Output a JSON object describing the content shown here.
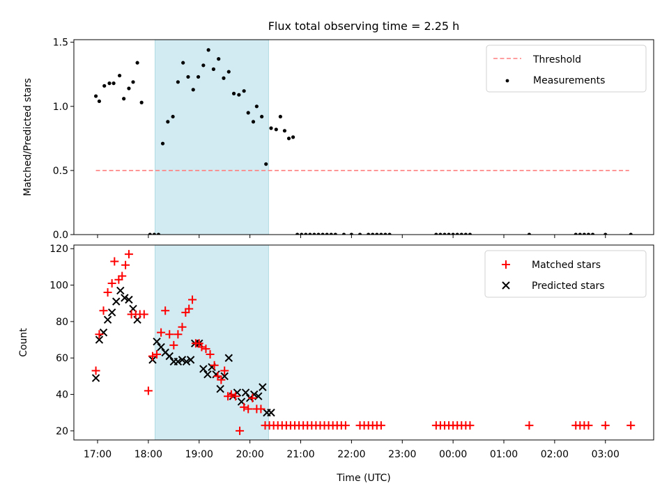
{
  "title": "Flux total observing time = 2.25 h",
  "colors": {
    "threshold": "#ff7f7f",
    "measurement": "#000000",
    "matched": "#ff0000",
    "predicted": "#000000",
    "observing_span": "#add8e6"
  },
  "chart_data": [
    {
      "type": "scatter",
      "ylabel": "Matched/Predicted stars",
      "ylim": [
        0,
        1.52
      ],
      "yticks": [
        0.0,
        0.5,
        1.0,
        1.5
      ],
      "ytick_labels": [
        "0.0",
        "0.5",
        "1.0",
        "1.5"
      ],
      "shaded_span": [
        "18:08",
        "20:22"
      ],
      "legend_position": "top-right",
      "legend": [
        "Threshold",
        "Measurements"
      ],
      "threshold": {
        "name": "Threshold",
        "value": 0.5,
        "x_range": [
          "16:58",
          "03:28"
        ]
      },
      "series": [
        {
          "name": "Measurements",
          "x": [
            "16:58",
            "17:02",
            "17:08",
            "17:14",
            "17:19",
            "17:26",
            "17:31",
            "17:37",
            "17:42",
            "17:47",
            "17:52",
            "18:02",
            "18:07",
            "18:12",
            "18:17",
            "18:23",
            "18:29",
            "18:35",
            "18:41",
            "18:47",
            "18:53",
            "18:59",
            "19:05",
            "19:11",
            "19:17",
            "19:23",
            "19:29",
            "19:35",
            "19:41",
            "19:47",
            "19:53",
            "19:58",
            "20:04",
            "20:08",
            "20:14",
            "20:19",
            "20:25",
            "20:31",
            "20:36",
            "20:41",
            "20:46",
            "20:51",
            "20:56",
            "21:01",
            "21:06",
            "21:11",
            "21:16",
            "21:21",
            "21:26",
            "21:31",
            "21:36",
            "21:41",
            "21:51",
            "22:00",
            "22:10",
            "22:20",
            "22:25",
            "22:30",
            "22:35",
            "22:40",
            "22:45",
            "23:40",
            "23:45",
            "23:50",
            "23:55",
            "00:00",
            "00:05",
            "00:10",
            "00:15",
            "00:20",
            "01:30",
            "02:25",
            "02:30",
            "02:35",
            "02:40",
            "02:45",
            "03:00",
            "03:30"
          ],
          "y": [
            1.08,
            1.04,
            1.16,
            1.18,
            1.18,
            1.24,
            1.06,
            1.14,
            1.19,
            1.34,
            1.03,
            0,
            0,
            0,
            0.71,
            0.88,
            0.92,
            1.19,
            1.34,
            1.23,
            1.13,
            1.23,
            1.32,
            1.44,
            1.29,
            1.37,
            1.22,
            1.27,
            1.1,
            1.09,
            1.12,
            0.95,
            0.88,
            1.0,
            0.92,
            0.55,
            0.83,
            0.82,
            0.92,
            0.81,
            0.75,
            0.76,
            0,
            0,
            0,
            0,
            0,
            0,
            0,
            0,
            0,
            0,
            0,
            0,
            0,
            0,
            0,
            0,
            0,
            0,
            0,
            0,
            0,
            0,
            0,
            0,
            0,
            0,
            0,
            0,
            0,
            0,
            0,
            0,
            0,
            0,
            0,
            0
          ]
        }
      ]
    },
    {
      "type": "scatter",
      "xlabel": "Time (UTC)",
      "ylabel": "Count",
      "ylim": [
        15,
        122
      ],
      "yticks": [
        20,
        40,
        60,
        80,
        100,
        120
      ],
      "ytick_labels": [
        "20",
        "40",
        "60",
        "80",
        "100",
        "120"
      ],
      "xticks": [
        "17:00",
        "18:00",
        "19:00",
        "20:00",
        "21:00",
        "22:00",
        "23:00",
        "00:00",
        "01:00",
        "02:00",
        "03:00"
      ],
      "xlim": [
        "16:32",
        "03:57"
      ],
      "shaded_span": [
        "18:08",
        "20:22"
      ],
      "legend_position": "top-right",
      "legend": [
        "Matched stars",
        "Predicted stars"
      ],
      "series": [
        {
          "name": "Matched stars",
          "x": [
            "16:58",
            "17:02",
            "17:07",
            "17:12",
            "17:17",
            "17:20",
            "17:25",
            "17:29",
            "17:33",
            "17:37",
            "17:40",
            "17:45",
            "17:50",
            "17:55",
            "18:00",
            "18:05",
            "18:10",
            "18:15",
            "18:20",
            "18:25",
            "18:30",
            "18:35",
            "18:40",
            "18:44",
            "18:48",
            "18:52",
            "18:56",
            "19:00",
            "19:03",
            "19:08",
            "19:13",
            "19:18",
            "19:22",
            "19:26",
            "19:30",
            "19:34",
            "19:38",
            "19:43",
            "19:48",
            "19:53",
            "19:58",
            "20:03",
            "20:08",
            "20:13",
            "20:18",
            "20:23",
            "20:28",
            "20:33",
            "20:38",
            "20:43",
            "20:48",
            "20:53",
            "20:58",
            "21:03",
            "21:08",
            "21:13",
            "21:18",
            "21:23",
            "21:28",
            "21:33",
            "21:38",
            "21:43",
            "21:48",
            "21:53",
            "22:10",
            "22:15",
            "22:20",
            "22:25",
            "22:30",
            "22:35",
            "23:40",
            "23:45",
            "23:50",
            "23:55",
            "00:00",
            "00:05",
            "00:10",
            "00:15",
            "00:20",
            "01:30",
            "02:25",
            "02:30",
            "02:35",
            "02:40",
            "03:00",
            "03:30"
          ],
          "y": [
            53,
            73,
            86,
            96,
            101,
            113,
            103,
            105,
            111,
            117,
            84,
            84,
            84,
            84,
            42,
            61,
            62,
            74,
            86,
            73,
            67,
            73,
            77,
            85,
            87,
            92,
            68,
            68,
            66,
            65,
            62,
            56,
            50,
            48,
            53,
            39,
            40,
            39,
            20,
            33,
            32,
            38,
            32,
            32,
            23,
            23,
            23,
            23,
            23,
            23,
            23,
            23,
            23,
            23,
            23,
            23,
            23,
            23,
            23,
            23,
            23,
            23,
            23,
            23,
            23,
            23,
            23,
            23,
            23,
            23,
            23,
            23,
            23,
            23,
            23,
            23,
            23,
            23,
            23,
            23,
            23,
            23,
            23,
            23,
            23,
            23
          ]
        },
        {
          "name": "Predicted stars",
          "x": [
            "16:58",
            "17:02",
            "17:07",
            "17:12",
            "17:17",
            "17:22",
            "17:27",
            "17:32",
            "17:37",
            "17:42",
            "17:47",
            "18:05",
            "18:10",
            "18:15",
            "18:20",
            "18:25",
            "18:30",
            "18:35",
            "18:40",
            "18:45",
            "18:50",
            "18:55",
            "19:00",
            "19:05",
            "19:10",
            "19:15",
            "19:20",
            "19:25",
            "19:30",
            "19:35",
            "19:40",
            "19:45",
            "19:50",
            "19:55",
            "20:00",
            "20:05",
            "20:10",
            "20:15",
            "20:20",
            "20:25"
          ],
          "y": [
            49,
            70,
            74,
            81,
            85,
            91,
            97,
            93,
            92,
            87,
            81,
            59,
            69,
            66,
            63,
            61,
            58,
            58,
            59,
            58,
            59,
            68,
            68,
            54,
            51,
            55,
            51,
            43,
            50,
            60,
            39,
            41,
            36,
            41,
            38,
            40,
            39,
            44,
            30,
            30
          ]
        }
      ]
    }
  ]
}
